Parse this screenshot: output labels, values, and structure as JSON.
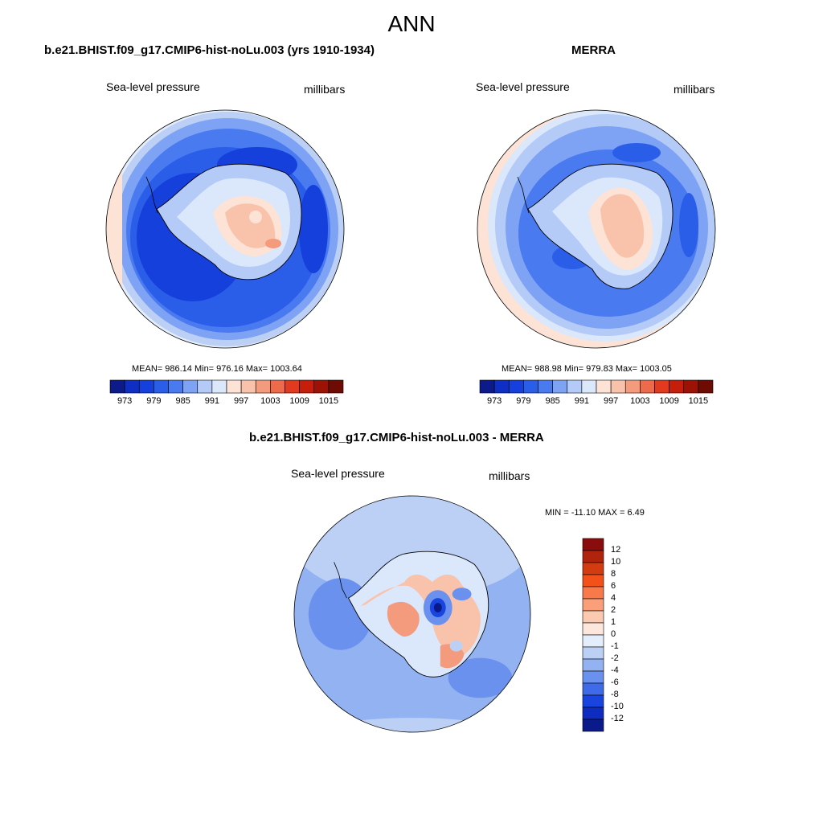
{
  "figure": {
    "title": "ANN"
  },
  "panels": [
    {
      "id": "model",
      "title": "b.e21.BHIST.f09_g17.CMIP6-hist-noLu.003 (yrs 1910-1934)",
      "left_label": "Sea-level pressure",
      "right_label": "millibars",
      "stats_text": "MEAN= 986.14  Min= 976.16  Max= 1003.64",
      "mean": 986.14,
      "min": 976.16,
      "max": 1003.64
    },
    {
      "id": "obs",
      "title": "MERRA",
      "left_label": "Sea-level pressure",
      "right_label": "millibars",
      "stats_text": "MEAN= 988.98  Min= 979.83  Max= 1003.05",
      "mean": 988.98,
      "min": 979.83,
      "max": 1003.05
    },
    {
      "id": "diff",
      "title": "b.e21.BHIST.f09_g17.CMIP6-hist-noLu.003 - MERRA",
      "left_label": "Sea-level pressure",
      "right_label": "millibars",
      "stats_text": "MIN = -11.10 MAX =   6.49",
      "min": -11.1,
      "max": 6.49
    }
  ],
  "colorbar_abs": {
    "tick_labels": [
      "973",
      "979",
      "985",
      "991",
      "997",
      "1003",
      "1009",
      "1015"
    ],
    "colors": [
      "#0d1a8a",
      "#0f2fc4",
      "#1540dc",
      "#2a5ee8",
      "#4a7af0",
      "#7ea2f4",
      "#b4cbf8",
      "#dbe7fb",
      "#fde3d6",
      "#f9c3ab",
      "#f39b7c",
      "#ed6b4a",
      "#e23a1e",
      "#c51e0b",
      "#9c1306",
      "#6e0b03"
    ]
  },
  "colorbar_diff": {
    "tick_labels": [
      "12",
      "10",
      "8",
      "6",
      "4",
      "2",
      "1",
      "0",
      "-1",
      "-2",
      "-4",
      "-6",
      "-8",
      "-10",
      "-12"
    ],
    "colors": [
      "#8a0c0c",
      "#b0230c",
      "#d23c10",
      "#f2521a",
      "#f8794a",
      "#f9a07a",
      "#fbc8b0",
      "#fde7dc",
      "#e3edfc",
      "#bcd0f6",
      "#93b2f2",
      "#6b91ee",
      "#3f6ae8",
      "#1a44de",
      "#0f2cc0",
      "#0a1a8a"
    ]
  }
}
